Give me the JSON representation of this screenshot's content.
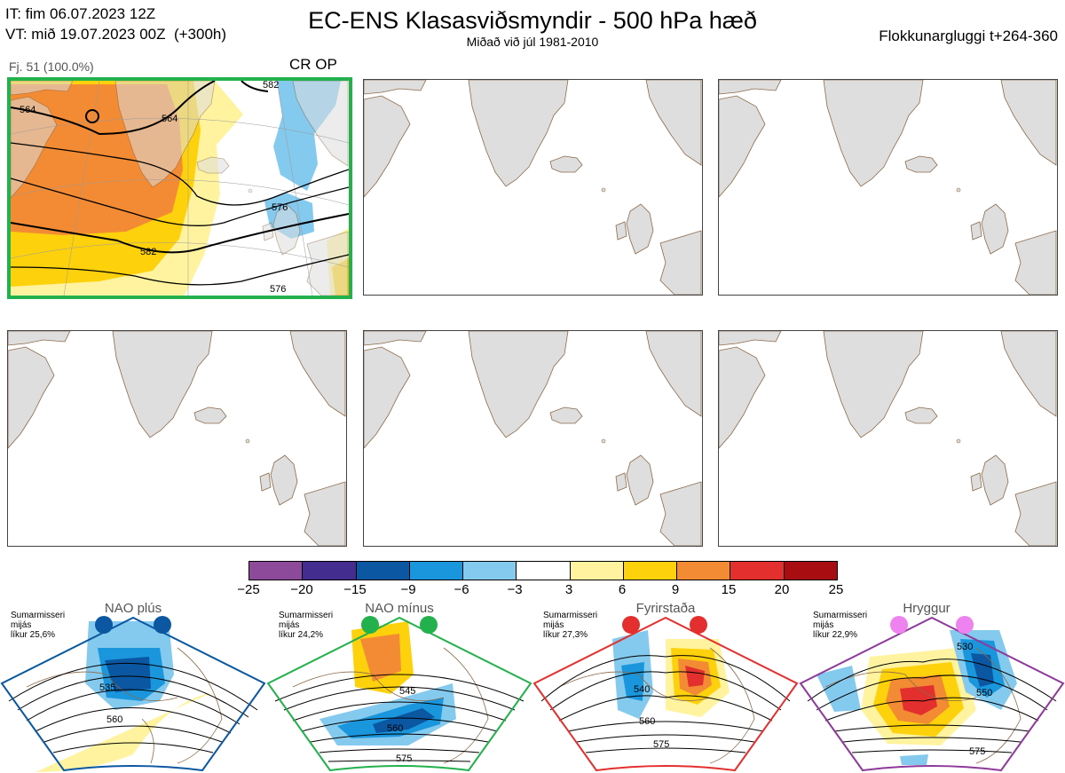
{
  "header": {
    "initial_time": "IT: fim 06.07.2023 12Z",
    "valid_time": "VT: mið 19.07.2023 00Z  (+300h)",
    "title": "EC-ENS Klasasviðsmyndir - 500 hPa hæð",
    "subtitle": "Miðað við júl 1981-2010",
    "window": "Flokkunargluggi t+264-360"
  },
  "panels": [
    {
      "label": "Fj. 51 (100.0%)",
      "tags": "CR OP",
      "highlight_color": "#22b14c",
      "contour_labels": [
        "564",
        "564",
        "576",
        "582",
        "576",
        "582"
      ]
    },
    {
      "label": ""
    },
    {
      "label": ""
    },
    {
      "label": ""
    },
    {
      "label": ""
    },
    {
      "label": ""
    }
  ],
  "colorbar": {
    "ticks": [
      "−25",
      "−20",
      "−15",
      "−9",
      "−6",
      "−3",
      "3",
      "6",
      "9",
      "15",
      "20",
      "25"
    ],
    "colors": [
      "#8e4a9a",
      "#432d8f",
      "#0c57a1",
      "#1a96dd",
      "#84c9ee",
      "#ffffff",
      "#fff3a0",
      "#fdd20d",
      "#f28b33",
      "#e3302f",
      "#a80d12"
    ]
  },
  "regimes": [
    {
      "name": "NAO plús",
      "note": "Sumarmisseri\nmijás\nlíkur 25,6%",
      "color": "#0c57a1",
      "labels": [
        "535",
        "560"
      ]
    },
    {
      "name": "NAO mínus",
      "note": "Sumarmisseri\nmijás\nlíkur 24,2%",
      "color": "#22b14c",
      "labels": [
        "545",
        "560",
        "575"
      ]
    },
    {
      "name": "Fyrirstaða",
      "note": "Sumarmisseri\nmijás\nlíkur 27,3%",
      "color": "#e3302f",
      "labels": [
        "540",
        "560",
        "575"
      ]
    },
    {
      "name": "Hryggur",
      "note": "Sumarmisseri\nmijás\nlíkur 22,9%",
      "color": "#8e3a9a",
      "labels": [
        "530",
        "550",
        "575"
      ]
    }
  ]
}
